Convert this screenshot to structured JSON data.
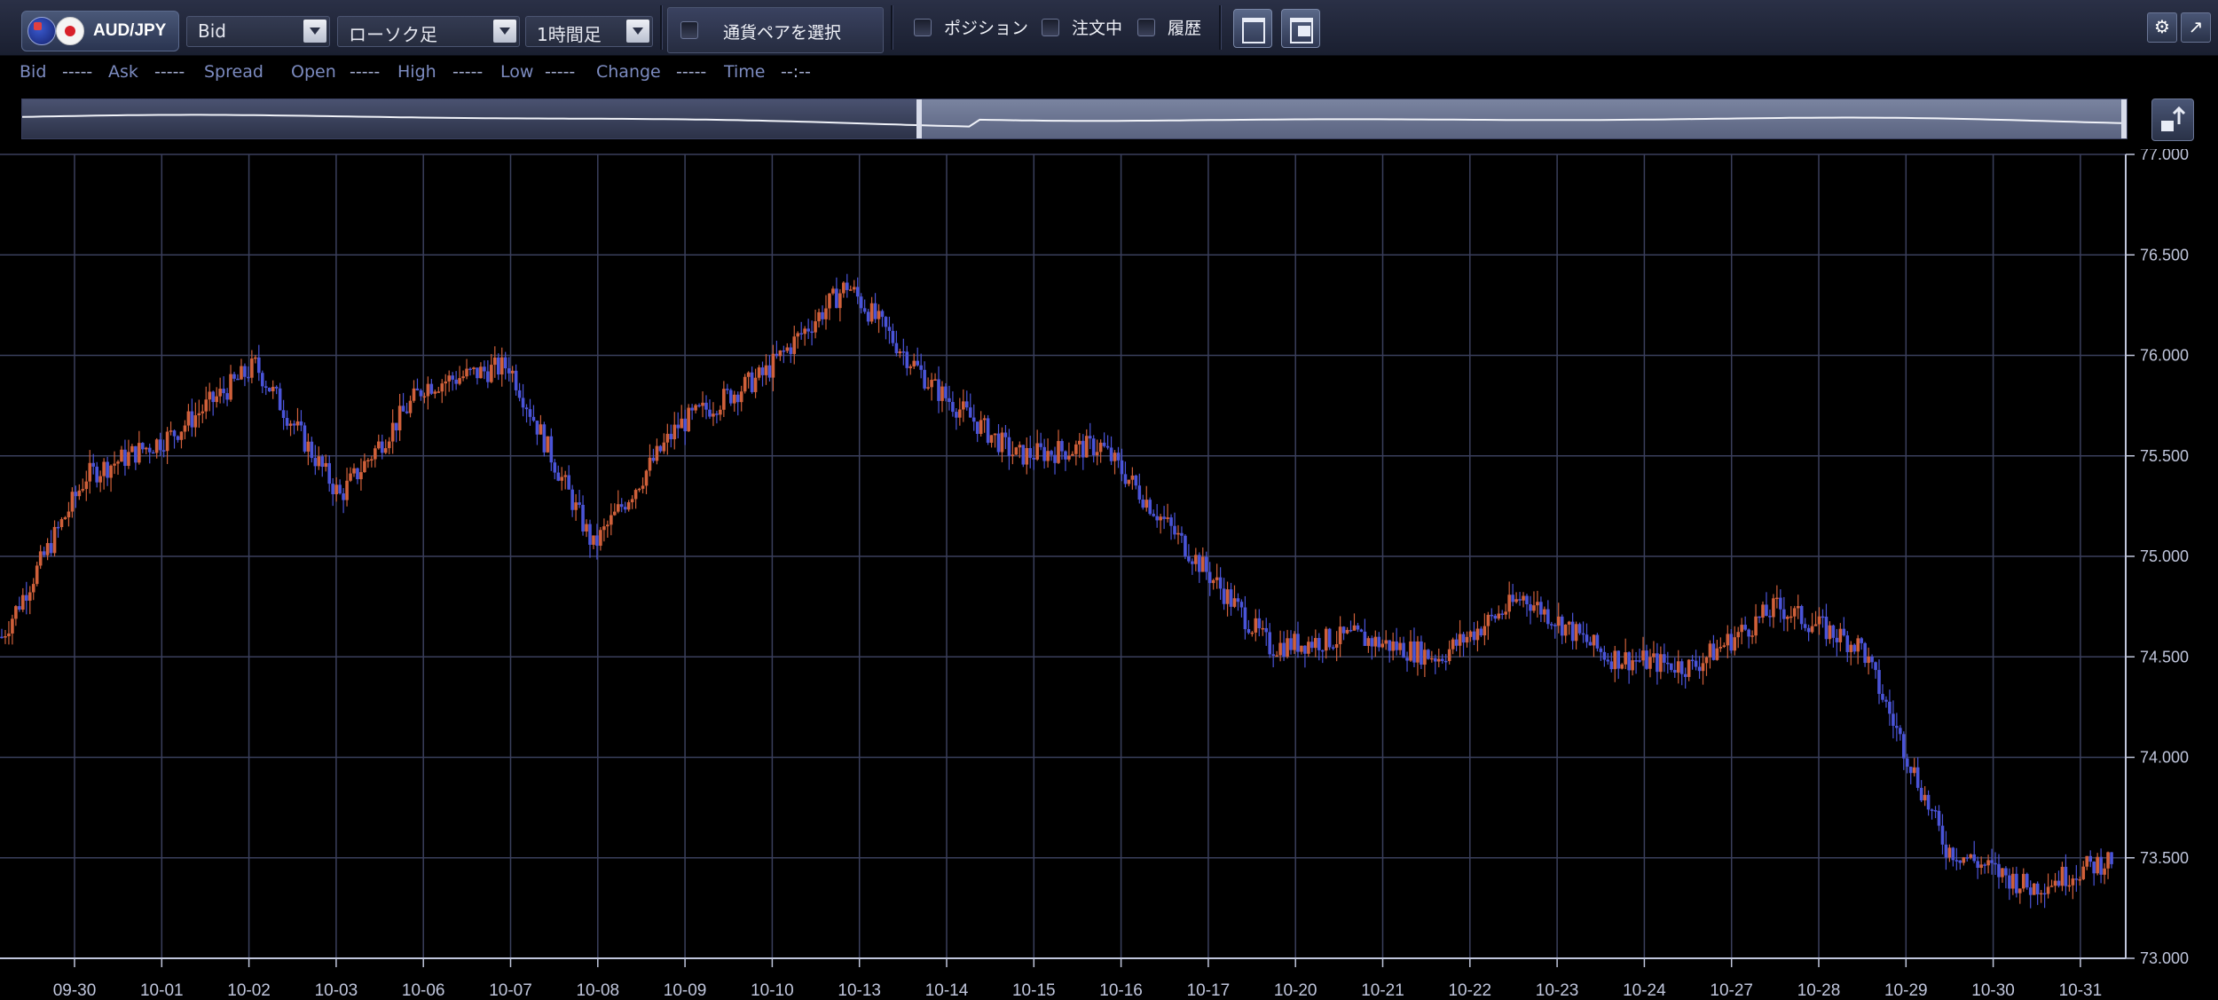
{
  "toolbar": {
    "pair_label": "AUD/JPY",
    "price_type": "Bid",
    "chart_type": "ローソク足",
    "timeframe": "1時間足",
    "pair_select_label": "通貨ペアを選択",
    "position_label": "ポジション",
    "orders_label": "注文中",
    "history_label": "履歴",
    "icons": [
      "gear-icon",
      "popout-icon"
    ]
  },
  "info": {
    "bid_label": "Bid",
    "bid_value": "-----",
    "ask_label": "Ask",
    "ask_value": "-----",
    "spread_label": "Spread",
    "open_label": "Open",
    "open_value": "-----",
    "high_label": "High",
    "high_value": "-----",
    "low_label": "Low",
    "low_value": "-----",
    "change_label": "Change",
    "change_value": "-----",
    "time_label": "Time",
    "time_value": "--:--"
  },
  "colors": {
    "up": "#d0603a",
    "down": "#4a54d8",
    "grid": "#3a3f5c",
    "background": "#000000"
  },
  "chart_data": {
    "type": "candlestick",
    "x_tick_labels": [
      "09-30",
      "10-01",
      "10-02",
      "10-03",
      "10-06",
      "10-07",
      "10-08",
      "10-09",
      "10-10",
      "10-13",
      "10-14",
      "10-15",
      "10-16",
      "10-17",
      "10-20",
      "10-21",
      "10-22",
      "10-23",
      "10-24",
      "10-27",
      "10-28",
      "10-29",
      "10-30",
      "10-31"
    ],
    "y_tick_labels": [
      "77.000",
      "76.500",
      "76.000",
      "75.500",
      "75.000",
      "74.500",
      "74.000",
      "73.500",
      "73.000"
    ],
    "ylim": [
      73.0,
      77.0
    ],
    "y_axis_position": "right",
    "grid": true,
    "daily_close_path": [
      74.6,
      75.4,
      75.6,
      75.95,
      75.3,
      75.85,
      75.95,
      75.05,
      75.65,
      75.9,
      76.35,
      75.85,
      75.5,
      75.55,
      75.05,
      74.55,
      74.6,
      74.5,
      74.8,
      74.5,
      74.45,
      74.75,
      74.55,
      73.55,
      73.35,
      73.5
    ]
  }
}
